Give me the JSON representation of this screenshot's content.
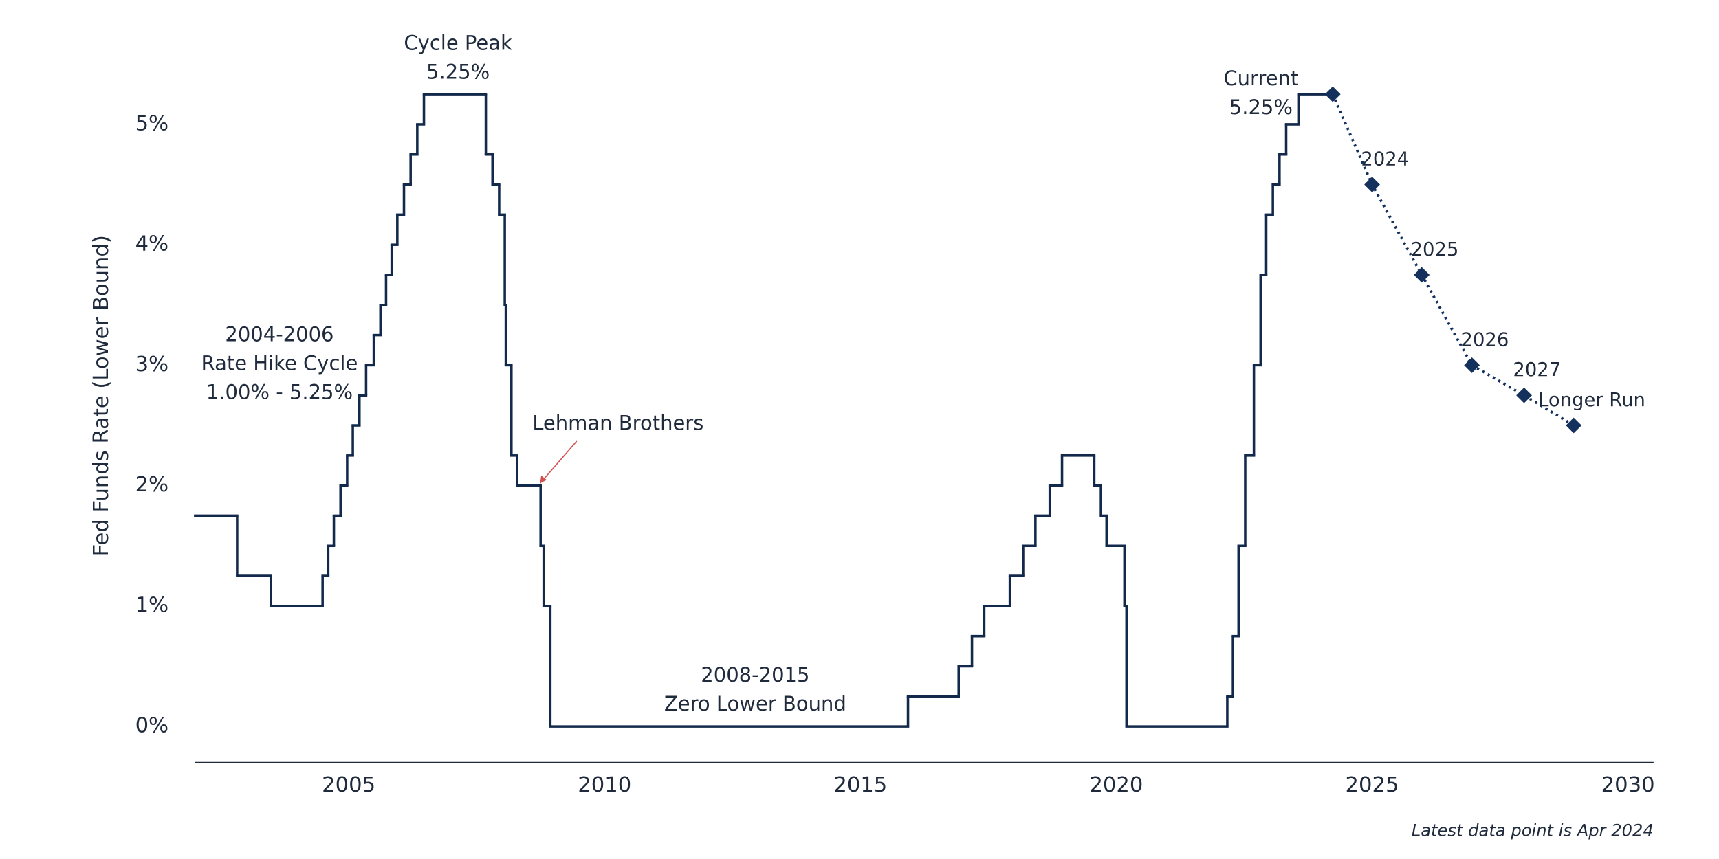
{
  "chart_data": {
    "type": "line",
    "y_label": "Fed Funds Rate (Lower Bound)",
    "footnote": "Latest data point is Apr 2024",
    "xlim": [
      2002,
      2030.5
    ],
    "xticks": [
      2005,
      2010,
      2015,
      2020,
      2025,
      2030
    ],
    "ylim": [
      -0.3,
      5.6
    ],
    "yticks": [
      {
        "value": 0,
        "label": "0%"
      },
      {
        "value": 1,
        "label": "1%"
      },
      {
        "value": 2,
        "label": "2%"
      },
      {
        "value": 3,
        "label": "3%"
      },
      {
        "value": 4,
        "label": "4%"
      },
      {
        "value": 5,
        "label": "5%"
      }
    ],
    "series": [
      {
        "color": "#13294b",
        "style": "step",
        "x": [
          2002.0,
          2002.82,
          2003.48,
          2004.49,
          2004.6,
          2004.71,
          2004.84,
          2004.97,
          2005.08,
          2005.21,
          2005.34,
          2005.49,
          2005.62,
          2005.73,
          2005.84,
          2005.95,
          2006.08,
          2006.21,
          2006.34,
          2006.47,
          2007.68,
          2007.81,
          2007.94,
          2008.05,
          2008.07,
          2008.18,
          2008.29,
          2008.75,
          2008.81,
          2008.94,
          2015.93,
          2016.92,
          2017.18,
          2017.42,
          2017.92,
          2018.18,
          2018.42,
          2018.7,
          2018.94,
          2019.57,
          2019.7,
          2019.81,
          2020.16,
          2020.2,
          2022.17,
          2022.28,
          2022.39,
          2022.52,
          2022.69,
          2022.82,
          2022.93,
          2023.06,
          2023.19,
          2023.32,
          2023.56,
          2024.23
        ],
        "values": [
          1.75,
          1.25,
          1.0,
          1.25,
          1.5,
          1.75,
          2.0,
          2.25,
          2.5,
          2.75,
          3.0,
          3.25,
          3.5,
          3.75,
          4.0,
          4.25,
          4.5,
          4.75,
          5.0,
          5.25,
          4.75,
          4.5,
          4.25,
          3.5,
          3.0,
          2.25,
          2.0,
          1.5,
          1.0,
          0,
          0.25,
          0.5,
          0.75,
          1.0,
          1.25,
          1.5,
          1.75,
          2.0,
          2.25,
          2.0,
          1.75,
          1.5,
          1.0,
          0,
          0.25,
          0.75,
          1.5,
          2.25,
          3.0,
          3.75,
          4.25,
          4.5,
          4.75,
          5.0,
          5.25,
          5.25
        ]
      },
      {
        "color": "#13315c",
        "style": "dotted",
        "x": [
          2024.23,
          2025.0,
          2025.97,
          2026.95,
          2027.97,
          2028.94
        ],
        "values": [
          5.25,
          4.5,
          3.75,
          3.0,
          2.75,
          2.5
        ],
        "point_labels": [
          null,
          "2024",
          "2025",
          "2026",
          "2027",
          "Longer Run"
        ]
      }
    ],
    "annotations": [
      {
        "lines": [
          "Cycle Peak",
          "5.25%"
        ],
        "color": "#1f2a3c"
      },
      {
        "lines": [
          "Current",
          "5.25%"
        ],
        "color": "#1f2a3c"
      },
      {
        "lines": [
          "2004-2006",
          "Rate Hike Cycle",
          "1.00% - 5.25%"
        ],
        "color": "#1f2a3c"
      },
      {
        "lines": [
          "Lehman Brothers"
        ],
        "color": "#1f2a3c"
      },
      {
        "lines": [
          "2008-2015",
          "Zero Lower Bound"
        ],
        "color": "#d0504f"
      }
    ]
  }
}
